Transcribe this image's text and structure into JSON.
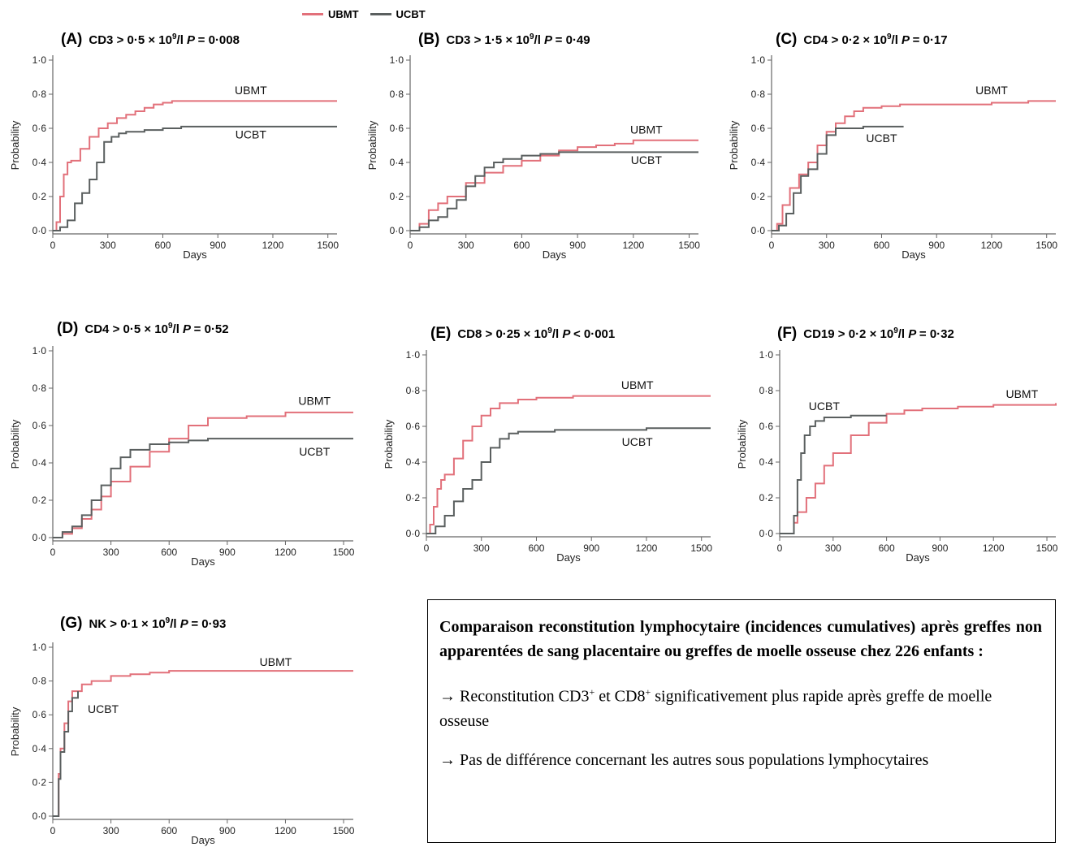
{
  "legend": {
    "items": [
      {
        "label": "UBMT",
        "color": "#e2707a"
      },
      {
        "label": "UCBT",
        "color": "#5a5f5f"
      }
    ]
  },
  "textbox": {
    "heading": "Comparaison reconstitution lymphocytaire (incidences cumulatives) après greffes non apparentées de sang placentaire ou greffes de moelle osseuse chez 226 enfants :",
    "arrow": "→",
    "para1_prefix": "Reconstitution CD3",
    "sup_plus_1": "+",
    "para1_mid": " et CD8",
    "sup_plus_2": "+",
    "para1_suffix": " significativement plus rapide après greffe de moelle osseuse",
    "para2": "Pas de différence concernant les autres sous populations lymphocytaires"
  },
  "chart_data": [
    {
      "type": "line",
      "panel": "(A)",
      "label": "CD3",
      "threshold": "> 0·5 × 10",
      "exp": "9",
      "unit": "/l",
      "p_label": "P",
      "p_value": "= 0·008",
      "xlabel": "Days",
      "ylabel": "Probability",
      "xlim": [
        0,
        1550
      ],
      "ylim": [
        0,
        1
      ],
      "xticks": [
        "0",
        "300",
        "600",
        "900",
        "1200",
        "1500"
      ],
      "yticks": [
        "0·0",
        "0·2",
        "0·4",
        "0·6",
        "0·8",
        "1·0"
      ],
      "series": [
        {
          "name": "UBMT",
          "x": [
            0,
            20,
            40,
            60,
            80,
            100,
            150,
            200,
            250,
            300,
            350,
            400,
            450,
            500,
            550,
            600,
            650,
            1550
          ],
          "y": [
            0,
            0.05,
            0.2,
            0.33,
            0.4,
            0.41,
            0.48,
            0.55,
            0.6,
            0.63,
            0.66,
            0.68,
            0.7,
            0.72,
            0.74,
            0.75,
            0.76,
            0.76
          ]
        },
        {
          "name": "UCBT",
          "x": [
            0,
            40,
            80,
            120,
            160,
            200,
            240,
            280,
            320,
            360,
            400,
            450,
            500,
            550,
            600,
            650,
            700,
            1550
          ],
          "y": [
            0,
            0.02,
            0.06,
            0.16,
            0.22,
            0.3,
            0.4,
            0.52,
            0.55,
            0.57,
            0.58,
            0.58,
            0.59,
            0.59,
            0.6,
            0.6,
            0.61,
            0.61
          ]
        }
      ],
      "series_labels": [
        {
          "name": "UBMT",
          "x": 1080,
          "y": 0.8
        },
        {
          "name": "UCBT",
          "x": 1080,
          "y": 0.54
        }
      ]
    },
    {
      "type": "line",
      "panel": "(B)",
      "label": "CD3",
      "threshold": "> 1·5 × 10",
      "exp": "9",
      "unit": "/l",
      "p_label": "P",
      "p_value": "= 0·49",
      "xlabel": "Days",
      "ylabel": "Probability",
      "xlim": [
        0,
        1550
      ],
      "ylim": [
        0,
        1
      ],
      "xticks": [
        "0",
        "300",
        "600",
        "900",
        "1200",
        "1500"
      ],
      "yticks": [
        "0·0",
        "0·2",
        "0·4",
        "0·6",
        "0·8",
        "1·0"
      ],
      "series": [
        {
          "name": "UBMT",
          "x": [
            0,
            50,
            100,
            150,
            200,
            300,
            400,
            500,
            600,
            700,
            800,
            900,
            1000,
            1100,
            1200,
            1550
          ],
          "y": [
            0,
            0.04,
            0.12,
            0.16,
            0.2,
            0.28,
            0.34,
            0.38,
            0.41,
            0.44,
            0.47,
            0.49,
            0.5,
            0.51,
            0.53,
            0.53
          ]
        },
        {
          "name": "UCBT",
          "x": [
            0,
            50,
            100,
            150,
            200,
            250,
            300,
            350,
            400,
            450,
            500,
            600,
            700,
            800,
            1000,
            1550
          ],
          "y": [
            0,
            0.02,
            0.06,
            0.08,
            0.13,
            0.18,
            0.26,
            0.32,
            0.37,
            0.4,
            0.42,
            0.44,
            0.45,
            0.46,
            0.46,
            0.46
          ]
        }
      ],
      "series_labels": [
        {
          "name": "UBMT",
          "x": 1270,
          "y": 0.57
        },
        {
          "name": "UCBT",
          "x": 1270,
          "y": 0.39
        }
      ]
    },
    {
      "type": "line",
      "panel": "(C)",
      "label": "CD4",
      "threshold": "> 0·2 × 10",
      "exp": "9",
      "unit": "/l",
      "p_label": "P",
      "p_value": "= 0·17",
      "xlabel": "Days",
      "ylabel": "Probability",
      "xlim": [
        0,
        1550
      ],
      "ylim": [
        0,
        1
      ],
      "xticks": [
        "0",
        "300",
        "600",
        "900",
        "1200",
        "1500"
      ],
      "yticks": [
        "0·0",
        "0·2",
        "0·4",
        "0·6",
        "0·8",
        "1·0"
      ],
      "series": [
        {
          "name": "UBMT",
          "x": [
            0,
            30,
            60,
            100,
            150,
            200,
            250,
            300,
            350,
            400,
            450,
            500,
            600,
            700,
            800,
            1000,
            1200,
            1400,
            1550
          ],
          "y": [
            0,
            0.04,
            0.15,
            0.25,
            0.33,
            0.4,
            0.5,
            0.58,
            0.63,
            0.67,
            0.7,
            0.72,
            0.73,
            0.74,
            0.74,
            0.74,
            0.75,
            0.76,
            0.76
          ]
        },
        {
          "name": "UCBT",
          "x": [
            0,
            40,
            80,
            120,
            160,
            200,
            250,
            300,
            350,
            400,
            450,
            500,
            600,
            720
          ],
          "y": [
            0,
            0.03,
            0.1,
            0.22,
            0.32,
            0.36,
            0.45,
            0.56,
            0.6,
            0.6,
            0.6,
            0.61,
            0.61,
            0.61
          ]
        }
      ],
      "series_labels": [
        {
          "name": "UBMT",
          "x": 1200,
          "y": 0.8
        },
        {
          "name": "UCBT",
          "x": 600,
          "y": 0.52
        }
      ]
    },
    {
      "type": "line",
      "panel": "(D)",
      "label": "CD4",
      "threshold": "> 0·5 × 10",
      "exp": "9",
      "unit": "/l",
      "p_label": "P",
      "p_value": "= 0·52",
      "xlabel": "Days",
      "ylabel": "Probability",
      "xlim": [
        0,
        1550
      ],
      "ylim": [
        0,
        1
      ],
      "xticks": [
        "0",
        "300",
        "600",
        "900",
        "1200",
        "1500"
      ],
      "yticks": [
        "0·0",
        "0·2",
        "0·4",
        "0·6",
        "0·8",
        "1·0"
      ],
      "series": [
        {
          "name": "UBMT",
          "x": [
            0,
            50,
            100,
            150,
            200,
            250,
            300,
            400,
            500,
            600,
            700,
            800,
            1000,
            1200,
            1550
          ],
          "y": [
            0,
            0.02,
            0.05,
            0.1,
            0.15,
            0.22,
            0.3,
            0.38,
            0.46,
            0.53,
            0.6,
            0.64,
            0.65,
            0.67,
            0.67
          ]
        },
        {
          "name": "UCBT",
          "x": [
            0,
            50,
            100,
            150,
            200,
            250,
            300,
            350,
            400,
            500,
            600,
            700,
            800,
            1550
          ],
          "y": [
            0,
            0.03,
            0.06,
            0.12,
            0.2,
            0.28,
            0.37,
            0.43,
            0.47,
            0.5,
            0.51,
            0.52,
            0.53,
            0.53
          ]
        }
      ],
      "series_labels": [
        {
          "name": "UBMT",
          "x": 1350,
          "y": 0.71
        },
        {
          "name": "UCBT",
          "x": 1350,
          "y": 0.44
        }
      ]
    },
    {
      "type": "line",
      "panel": "(E)",
      "label": "CD8",
      "threshold": "> 0·25 × 10",
      "exp": "9",
      "unit": "/l",
      "p_label": "P",
      "p_value": "< 0·001",
      "xlabel": "Days",
      "ylabel": "Probability",
      "xlim": [
        0,
        1550
      ],
      "ylim": [
        0,
        1
      ],
      "xticks": [
        "0",
        "300",
        "600",
        "900",
        "1200",
        "1500"
      ],
      "yticks": [
        "0·0",
        "0·2",
        "0·4",
        "0·6",
        "0·8",
        "1·0"
      ],
      "series": [
        {
          "name": "UBMT",
          "x": [
            0,
            20,
            40,
            60,
            80,
            100,
            150,
            200,
            250,
            300,
            350,
            400,
            500,
            600,
            800,
            1000,
            1550
          ],
          "y": [
            0,
            0.05,
            0.15,
            0.25,
            0.3,
            0.33,
            0.42,
            0.52,
            0.6,
            0.66,
            0.7,
            0.73,
            0.75,
            0.76,
            0.77,
            0.77,
            0.77
          ]
        },
        {
          "name": "UCBT",
          "x": [
            0,
            50,
            100,
            150,
            200,
            250,
            300,
            350,
            400,
            450,
            500,
            600,
            700,
            900,
            1200,
            1550
          ],
          "y": [
            0,
            0.04,
            0.1,
            0.18,
            0.25,
            0.3,
            0.4,
            0.48,
            0.53,
            0.56,
            0.57,
            0.57,
            0.58,
            0.58,
            0.59,
            0.59
          ]
        }
      ],
      "series_labels": [
        {
          "name": "UBMT",
          "x": 1150,
          "y": 0.81
        },
        {
          "name": "UCBT",
          "x": 1150,
          "y": 0.49
        }
      ]
    },
    {
      "type": "line",
      "panel": "(F)",
      "label": "CD19",
      "threshold": "> 0·2 × 10",
      "exp": "9",
      "unit": "/l",
      "p_label": "P",
      "p_value": "= 0·32",
      "xlabel": "Days",
      "ylabel": "Probability",
      "xlim": [
        0,
        1550
      ],
      "ylim": [
        0,
        1
      ],
      "xticks": [
        "0",
        "300",
        "600",
        "900",
        "1200",
        "1500"
      ],
      "yticks": [
        "0·0",
        "0·2",
        "0·4",
        "0·6",
        "0·8",
        "1·0"
      ],
      "series": [
        {
          "name": "UBMT",
          "x": [
            0,
            60,
            80,
            100,
            150,
            200,
            250,
            300,
            400,
            500,
            600,
            700,
            800,
            1000,
            1200,
            1550
          ],
          "y": [
            0,
            0,
            0.06,
            0.12,
            0.2,
            0.28,
            0.38,
            0.45,
            0.55,
            0.62,
            0.67,
            0.69,
            0.7,
            0.71,
            0.72,
            0.73
          ]
        },
        {
          "name": "UCBT",
          "x": [
            0,
            60,
            80,
            100,
            120,
            140,
            170,
            200,
            250,
            300,
            400,
            500,
            600
          ],
          "y": [
            0,
            0,
            0.1,
            0.3,
            0.45,
            0.55,
            0.6,
            0.63,
            0.65,
            0.65,
            0.66,
            0.66,
            0.66
          ]
        }
      ],
      "series_labels": [
        {
          "name": "UBMT",
          "x": 1360,
          "y": 0.76
        },
        {
          "name": "UCBT",
          "x": 250,
          "y": 0.69
        }
      ]
    },
    {
      "type": "line",
      "panel": "(G)",
      "label": "NK",
      "threshold": "> 0·1 × 10",
      "exp": "9",
      "unit": "/l",
      "p_label": "P",
      "p_value": "= 0·93",
      "xlabel": "Days",
      "ylabel": "Probability",
      "xlim": [
        0,
        1550
      ],
      "ylim": [
        0,
        1
      ],
      "xticks": [
        "0",
        "300",
        "600",
        "900",
        "1200",
        "1500"
      ],
      "yticks": [
        "0·0",
        "0·2",
        "0·4",
        "0·6",
        "0·8",
        "1·0"
      ],
      "series": [
        {
          "name": "UBMT",
          "x": [
            0,
            20,
            30,
            40,
            60,
            80,
            100,
            150,
            200,
            300,
            400,
            500,
            600,
            800,
            1550
          ],
          "y": [
            0,
            0,
            0.25,
            0.4,
            0.55,
            0.68,
            0.74,
            0.78,
            0.8,
            0.83,
            0.84,
            0.85,
            0.86,
            0.86,
            0.86
          ]
        },
        {
          "name": "UCBT",
          "x": [
            0,
            20,
            30,
            40,
            60,
            80,
            100,
            130
          ],
          "y": [
            0,
            0,
            0.22,
            0.38,
            0.5,
            0.62,
            0.7,
            0.74
          ]
        }
      ],
      "series_labels": [
        {
          "name": "UBMT",
          "x": 1150,
          "y": 0.89
        },
        {
          "name": "UCBT",
          "x": 260,
          "y": 0.61
        }
      ]
    }
  ]
}
